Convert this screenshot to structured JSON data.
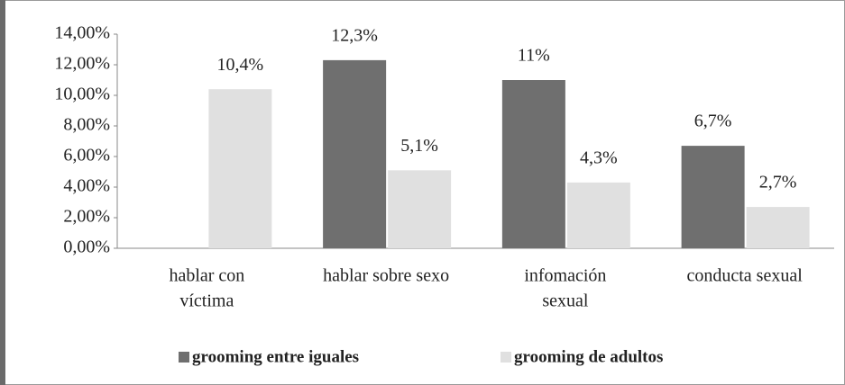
{
  "chart_data": {
    "type": "bar",
    "categories": [
      [
        "hablar con",
        "víctima"
      ],
      [
        "hablar sobre sexo"
      ],
      [
        "infomación",
        "sexual"
      ],
      [
        "conducta sexual"
      ]
    ],
    "series": [
      {
        "name": "grooming entre iguales",
        "color": "#6f6f6f",
        "values": [
          null,
          12.3,
          11,
          6.7
        ],
        "value_labels": [
          null,
          "12,3%",
          "11%",
          "6,7%"
        ]
      },
      {
        "name": "grooming de adultos",
        "color": "#e0e0e0",
        "values": [
          10.4,
          5.1,
          4.3,
          2.7
        ],
        "value_labels": [
          "10,4%",
          "5,1%",
          "4,3%",
          "2,7%"
        ]
      }
    ],
    "ylim": [
      0,
      14
    ],
    "yticks": [
      {
        "value": 0,
        "label": "0,00%"
      },
      {
        "value": 2,
        "label": "2,00%"
      },
      {
        "value": 4,
        "label": "4,00%"
      },
      {
        "value": 6,
        "label": "6,00%"
      },
      {
        "value": 8,
        "label": "8,00%"
      },
      {
        "value": 10,
        "label": "10,00%"
      },
      {
        "value": 12,
        "label": "12,00%"
      },
      {
        "value": 14,
        "label": "14,00%"
      }
    ],
    "grid": false,
    "legend": "bottom"
  }
}
